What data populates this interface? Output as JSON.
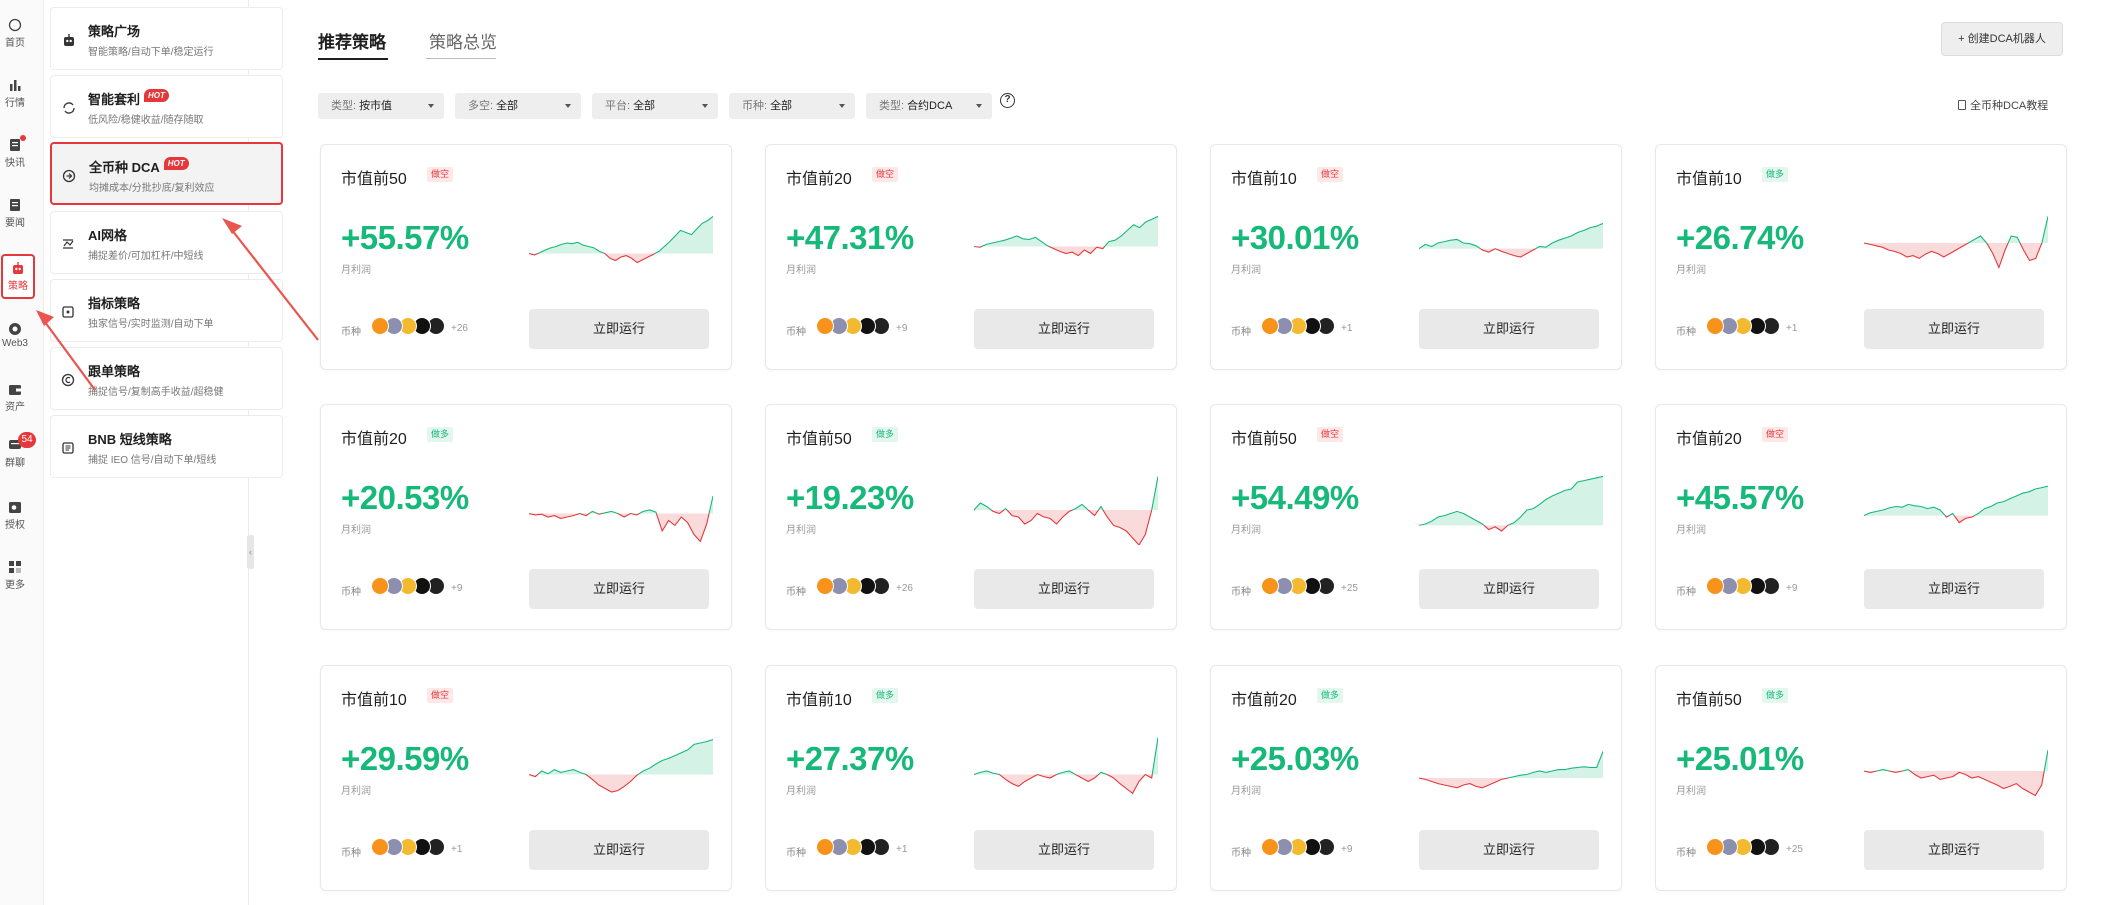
{
  "rail": {
    "items": [
      {
        "label": "首页",
        "icon": "home-icon"
      },
      {
        "label": "行情",
        "icon": "market-icon"
      },
      {
        "label": "快讯",
        "icon": "news-icon"
      },
      {
        "label": "要闻",
        "icon": "headlines-icon"
      },
      {
        "label": "策略",
        "icon": "robot-icon"
      },
      {
        "label": "Web3",
        "icon": "web3-icon"
      },
      {
        "label": "资产",
        "icon": "wallet-icon"
      },
      {
        "label": "群聊",
        "icon": "chat-icon",
        "badge": "54"
      },
      {
        "label": "授权",
        "icon": "key-icon"
      },
      {
        "label": "更多",
        "icon": "more-icon"
      }
    ]
  },
  "menu": {
    "items": [
      {
        "title": "策略广场",
        "sub": "智能策略/自动下单/稳定运行",
        "icon": "robot-icon"
      },
      {
        "title": "智能套利",
        "sub": "低风险/稳健收益/随存随取",
        "icon": "refresh-icon",
        "hot": "HOT"
      },
      {
        "title": "全币种 DCA",
        "sub": "均摊成本/分批抄底/复利效应",
        "icon": "dca-icon",
        "hot": "HOT"
      },
      {
        "title": "AI网格",
        "sub": "捕捉差价/可加杠杆/中短线",
        "icon": "grid-icon"
      },
      {
        "title": "指标策略",
        "sub": "独家信号/实时监测/自动下单",
        "icon": "indicator-icon"
      },
      {
        "title": "跟单策略",
        "sub": "捕捉信号/复制高手收益/超稳健",
        "icon": "copy-icon"
      },
      {
        "title": "BNB 短线策略",
        "sub": "捕捉 IEO 信号/自动下单/短线",
        "icon": "bnb-icon"
      }
    ]
  },
  "tabs": {
    "active": "推荐策略",
    "inactive": "策略总览"
  },
  "create_button": "+ 创建DCA机器人",
  "filters": [
    {
      "label": "类型:",
      "value": "按市值"
    },
    {
      "label": "多空:",
      "value": "全部"
    },
    {
      "label": "平台:",
      "value": "全部"
    },
    {
      "label": "币种:",
      "value": "全部"
    },
    {
      "label": "类型:",
      "value": "合约DCA"
    }
  ],
  "help_icon": "?",
  "tutorial": "全币种DCA教程",
  "colors": {
    "profit": "#16b979",
    "loss": "#e5383b",
    "accent": "#e5383b"
  },
  "card_labels": {
    "profit_label": "月利润",
    "coins_label": "币种",
    "run_button": "立即运行"
  },
  "cards": [
    {
      "title": "市值前50",
      "tag": "做空",
      "side": "short",
      "pct": "+55.57%",
      "more": "+26",
      "spark": [
        0.55,
        0.57,
        0.54,
        0.5,
        0.47,
        0.45,
        0.42,
        0.4,
        0.41,
        0.39,
        0.43,
        0.45,
        0.47,
        0.52,
        0.55,
        0.62,
        0.65,
        0.6,
        0.58,
        0.62,
        0.68,
        0.64,
        0.6,
        0.56,
        0.52,
        0.45,
        0.38,
        0.3,
        0.22,
        0.25,
        0.28,
        0.2,
        0.12,
        0.08,
        0.02
      ]
    },
    {
      "title": "市值前20",
      "tag": "做空",
      "side": "short",
      "pct": "+47.31%",
      "more": "+9",
      "spark": [
        0.45,
        0.46,
        0.42,
        0.4,
        0.38,
        0.36,
        0.33,
        0.3,
        0.34,
        0.35,
        0.32,
        0.38,
        0.44,
        0.48,
        0.52,
        0.55,
        0.53,
        0.58,
        0.5,
        0.55,
        0.46,
        0.48,
        0.38,
        0.36,
        0.3,
        0.22,
        0.14,
        0.18,
        0.1,
        0.06,
        0.02
      ]
    },
    {
      "title": "市值前10",
      "tag": "做空",
      "side": "short",
      "pct": "+30.01%",
      "more": "+1",
      "spark": [
        0.48,
        0.42,
        0.45,
        0.4,
        0.38,
        0.36,
        0.35,
        0.4,
        0.41,
        0.44,
        0.5,
        0.53,
        0.48,
        0.52,
        0.55,
        0.58,
        0.6,
        0.55,
        0.5,
        0.45,
        0.46,
        0.4,
        0.36,
        0.33,
        0.3,
        0.25,
        0.22,
        0.18,
        0.16,
        0.12
      ]
    },
    {
      "title": "市值前10",
      "tag": "做多",
      "side": "long",
      "pct": "+26.74%",
      "more": "+1",
      "spark": [
        0.4,
        0.42,
        0.44,
        0.46,
        0.5,
        0.52,
        0.55,
        0.6,
        0.58,
        0.62,
        0.56,
        0.52,
        0.55,
        0.6,
        0.55,
        0.5,
        0.45,
        0.4,
        0.35,
        0.3,
        0.4,
        0.55,
        0.75,
        0.5,
        0.3,
        0.32,
        0.5,
        0.65,
        0.62,
        0.4,
        0.02
      ]
    },
    {
      "title": "市值前20",
      "tag": "做多",
      "side": "long",
      "pct": "+20.53%",
      "more": "+9",
      "spark": [
        0.55,
        0.57,
        0.56,
        0.6,
        0.58,
        0.62,
        0.6,
        0.58,
        0.55,
        0.58,
        0.52,
        0.56,
        0.54,
        0.52,
        0.55,
        0.6,
        0.55,
        0.57,
        0.52,
        0.5,
        0.53,
        0.8,
        0.65,
        0.72,
        0.6,
        0.68,
        0.85,
        0.95,
        0.7,
        0.3
      ]
    },
    {
      "title": "市值前50",
      "tag": "做多",
      "side": "long",
      "pct": "+19.23%",
      "more": "+26",
      "spark": [
        0.5,
        0.4,
        0.45,
        0.52,
        0.55,
        0.48,
        0.58,
        0.6,
        0.7,
        0.65,
        0.55,
        0.6,
        0.62,
        0.7,
        0.6,
        0.52,
        0.48,
        0.42,
        0.5,
        0.58,
        0.45,
        0.6,
        0.72,
        0.75,
        0.8,
        0.9,
        1.0,
        0.85,
        0.5,
        0.02
      ]
    },
    {
      "title": "市值前50",
      "tag": "做空",
      "side": "short",
      "pct": "+54.49%",
      "more": "+25",
      "spark": [
        0.72,
        0.7,
        0.66,
        0.6,
        0.58,
        0.55,
        0.52,
        0.55,
        0.6,
        0.65,
        0.7,
        0.78,
        0.74,
        0.8,
        0.72,
        0.68,
        0.6,
        0.5,
        0.48,
        0.42,
        0.35,
        0.3,
        0.26,
        0.22,
        0.2,
        0.1,
        0.08,
        0.06,
        0.04,
        0.02
      ]
    },
    {
      "title": "市值前20",
      "tag": "做空",
      "side": "short",
      "pct": "+45.57%",
      "more": "+9",
      "spark": [
        0.58,
        0.54,
        0.52,
        0.5,
        0.47,
        0.45,
        0.46,
        0.42,
        0.44,
        0.45,
        0.48,
        0.46,
        0.5,
        0.6,
        0.55,
        0.68,
        0.62,
        0.6,
        0.55,
        0.48,
        0.45,
        0.4,
        0.38,
        0.34,
        0.3,
        0.26,
        0.24,
        0.2,
        0.18,
        0.16
      ]
    },
    {
      "title": "市值前10",
      "tag": "做空",
      "side": "short",
      "pct": "+29.59%",
      "more": "+1",
      "spark": [
        0.55,
        0.58,
        0.5,
        0.54,
        0.48,
        0.52,
        0.5,
        0.48,
        0.52,
        0.55,
        0.62,
        0.7,
        0.75,
        0.8,
        0.78,
        0.72,
        0.65,
        0.56,
        0.5,
        0.46,
        0.4,
        0.35,
        0.32,
        0.28,
        0.24,
        0.2,
        0.12,
        0.1,
        0.08,
        0.05
      ]
    },
    {
      "title": "市值前10",
      "tag": "做多",
      "side": "long",
      "pct": "+27.37%",
      "more": "+1",
      "spark": [
        0.55,
        0.52,
        0.5,
        0.53,
        0.55,
        0.62,
        0.68,
        0.72,
        0.65,
        0.6,
        0.55,
        0.58,
        0.6,
        0.55,
        0.52,
        0.5,
        0.55,
        0.6,
        0.65,
        0.6,
        0.52,
        0.55,
        0.6,
        0.68,
        0.75,
        0.82,
        0.65,
        0.55,
        0.6,
        0.02
      ]
    },
    {
      "title": "市值前20",
      "tag": "做多",
      "side": "long",
      "pct": "+25.03%",
      "more": "+9",
      "spark": [
        0.6,
        0.62,
        0.65,
        0.68,
        0.7,
        0.72,
        0.74,
        0.7,
        0.68,
        0.72,
        0.74,
        0.7,
        0.66,
        0.62,
        0.6,
        0.58,
        0.56,
        0.55,
        0.52,
        0.5,
        0.52,
        0.5,
        0.48,
        0.48,
        0.46,
        0.45,
        0.44,
        0.45,
        0.45,
        0.22
      ]
    },
    {
      "title": "市值前50",
      "tag": "做多",
      "side": "long",
      "pct": "+25.01%",
      "more": "+25",
      "spark": [
        0.5,
        0.52,
        0.5,
        0.48,
        0.5,
        0.52,
        0.5,
        0.48,
        0.55,
        0.6,
        0.58,
        0.56,
        0.62,
        0.6,
        0.58,
        0.52,
        0.55,
        0.6,
        0.58,
        0.62,
        0.66,
        0.7,
        0.75,
        0.72,
        0.68,
        0.75,
        0.8,
        0.85,
        0.7,
        0.2
      ]
    }
  ],
  "coins": [
    {
      "name": "btc-coin-icon",
      "color": "#f7931a"
    },
    {
      "name": "eth-coin-icon",
      "color": "#8c8fb0"
    },
    {
      "name": "bnb-coin-icon",
      "color": "#f3ba2f"
    },
    {
      "name": "okb-coin-icon",
      "color": "#111111"
    },
    {
      "name": "sol-coin-icon",
      "color": "#222222"
    }
  ]
}
